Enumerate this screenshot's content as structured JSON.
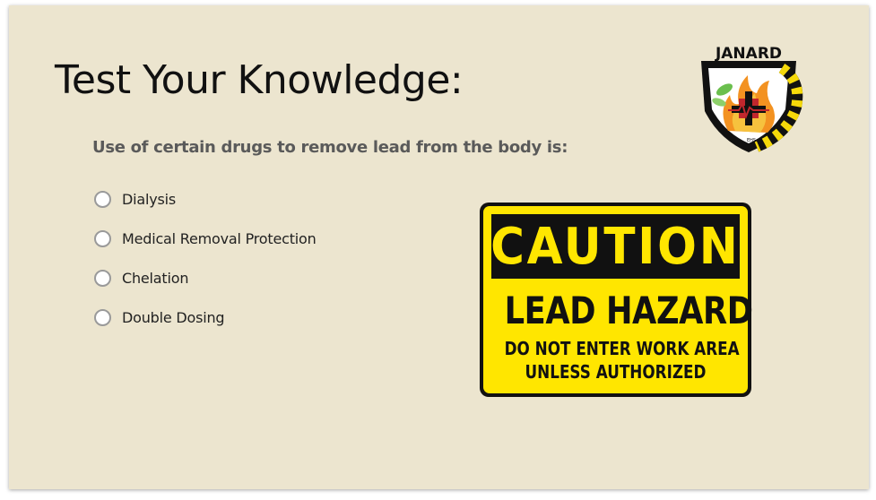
{
  "slide": {
    "title": "Test Your Knowledge:",
    "question": "Use of certain drugs to remove lead from the body is:",
    "options": [
      {
        "label": "Dialysis",
        "selected": false
      },
      {
        "label": "Medical Removal Protection",
        "selected": false
      },
      {
        "label": "Chelation",
        "selected": false
      },
      {
        "label": "Double Dosing",
        "selected": false
      }
    ]
  },
  "logo": {
    "text": "JANARD",
    "icon": "janard-shield-logo-icon",
    "sub_text": "EHS"
  },
  "sign": {
    "header": "CAUTION",
    "title": "LEAD HAZARD",
    "line1": "DO NOT ENTER WORK AREA",
    "line2": "UNLESS AUTHORIZED",
    "colors": {
      "background": "#ffe600",
      "ink": "#111111"
    }
  },
  "colors": {
    "slide_background": "#ece5cf",
    "title": "#111111",
    "question": "#5a5a5a"
  }
}
